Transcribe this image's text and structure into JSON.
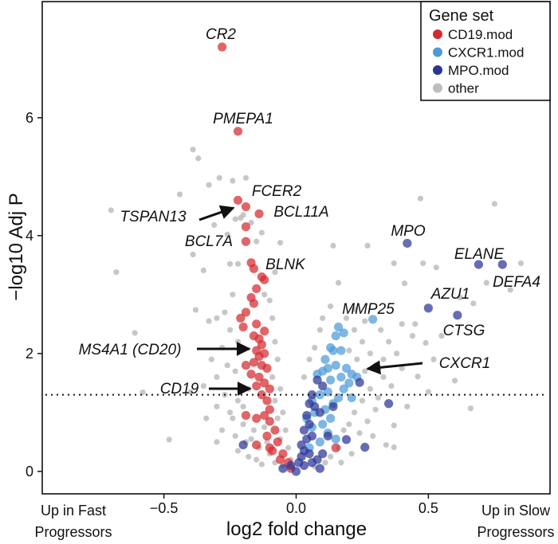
{
  "chart_data": {
    "type": "scatter",
    "title": "",
    "xlabel": "log2 fold change",
    "ylabel": "−log10 Adj P",
    "xlim": [
      -0.96,
      0.96
    ],
    "ylim": [
      -0.38,
      7.97
    ],
    "x_ticks": [
      {
        "value": -0.5,
        "label": "−0.5"
      },
      {
        "value": 0,
        "label": "0.0"
      },
      {
        "value": 0.5,
        "label": "0.5"
      }
    ],
    "y_ticks": [
      {
        "value": 0,
        "label": "0"
      },
      {
        "value": 2,
        "label": "2"
      },
      {
        "value": 4,
        "label": "4"
      },
      {
        "value": 6,
        "label": "6"
      }
    ],
    "threshold_line": {
      "y": 1.3,
      "style": "dotted"
    },
    "x_annotations": {
      "left": [
        "Up in Fast",
        "Progressors"
      ],
      "right": [
        "Up in Slow",
        "Progressors"
      ]
    },
    "legend": {
      "title": "Gene set",
      "placement": "top-right",
      "entries": [
        {
          "name": "CD19.mod",
          "color": "#d42a2f"
        },
        {
          "name": "CXCR1.mod",
          "color": "#4d9ad8"
        },
        {
          "name": "MPO.mod",
          "color": "#2c3595"
        },
        {
          "name": "other",
          "color": "#bdbdbd"
        }
      ]
    },
    "series": [
      {
        "name": "other",
        "color": "#bdbdbd",
        "points": [
          [
            -0.39,
            5.46
          ],
          [
            -0.37,
            5.31
          ],
          [
            -0.29,
            4.98
          ],
          [
            -0.24,
            4.93
          ],
          [
            -0.19,
            4.98
          ],
          [
            -0.33,
            4.86
          ],
          [
            -0.44,
            4.7
          ],
          [
            -0.7,
            4.43
          ],
          [
            -0.31,
            4.18
          ],
          [
            -0.13,
            4.05
          ],
          [
            -0.15,
            3.9
          ],
          [
            -0.06,
            3.88
          ],
          [
            -0.39,
            3.68
          ],
          [
            0.14,
            3.83
          ],
          [
            0.27,
            3.83
          ],
          [
            0.47,
            4.63
          ],
          [
            0.75,
            4.54
          ],
          [
            0.37,
            3.53
          ],
          [
            0.48,
            3.53
          ],
          [
            0.53,
            3.46
          ],
          [
            0.85,
            3.53
          ],
          [
            -0.68,
            3.38
          ],
          [
            -0.35,
            3.41
          ],
          [
            -0.25,
            3.52
          ],
          [
            -0.22,
            3.52
          ],
          [
            -0.08,
            3.38
          ],
          [
            -0.48,
            0.54
          ],
          [
            -0.61,
            2.35
          ],
          [
            -0.38,
            2.74
          ],
          [
            -0.58,
            1.34
          ],
          [
            0.66,
            1.07
          ],
          [
            0.6,
            1.54
          ],
          [
            0.67,
            2.85
          ],
          [
            0.37,
            0.41
          ],
          [
            0.37,
            0.78
          ],
          [
            0.42,
            1.1
          ],
          [
            0.46,
            1.61
          ],
          [
            0.5,
            1.35
          ],
          [
            0.16,
            3.2
          ],
          [
            0.41,
            3.19
          ],
          [
            0.62,
            2.95
          ],
          [
            0.72,
            3.2
          ],
          [
            0.81,
            3.08
          ],
          [
            0.49,
            2.18
          ],
          [
            0.45,
            2.5
          ],
          [
            -0.21,
            4.3
          ],
          [
            -0.2,
            4.35
          ],
          [
            -0.23,
            4.28
          ],
          [
            -0.17,
            4.22
          ],
          [
            -0.26,
            4.02
          ],
          [
            -0.12,
            3.0
          ],
          [
            -0.1,
            2.9
          ],
          [
            -0.24,
            3.0
          ],
          [
            -0.27,
            2.7
          ],
          [
            -0.3,
            2.6
          ],
          [
            -0.33,
            2.55
          ],
          [
            -0.25,
            2.4
          ],
          [
            -0.22,
            2.2
          ],
          [
            -0.28,
            2.1
          ],
          [
            -0.32,
            1.9
          ],
          [
            -0.26,
            1.8
          ],
          [
            -0.23,
            1.7
          ],
          [
            -0.3,
            1.6
          ],
          [
            -0.35,
            1.45
          ],
          [
            -0.4,
            1.35
          ],
          [
            -0.27,
            1.3
          ],
          [
            -0.22,
            1.2
          ],
          [
            -0.3,
            1.1
          ],
          [
            -0.25,
            1.0
          ],
          [
            -0.34,
            0.9
          ],
          [
            -0.2,
            0.8
          ],
          [
            -0.28,
            0.7
          ],
          [
            -0.23,
            0.6
          ],
          [
            -0.17,
            0.55
          ],
          [
            -0.3,
            0.5
          ],
          [
            -0.14,
            0.4
          ],
          [
            -0.22,
            0.35
          ],
          [
            -0.1,
            0.3
          ],
          [
            -0.18,
            0.25
          ],
          [
            -0.08,
            0.15
          ],
          [
            -0.13,
            0.12
          ],
          [
            -0.05,
            0.1
          ],
          [
            -0.09,
            2.6
          ],
          [
            -0.08,
            2.2
          ],
          [
            -0.07,
            1.9
          ],
          [
            -0.09,
            1.6
          ],
          [
            -0.06,
            1.4
          ],
          [
            -0.08,
            1.2
          ],
          [
            -0.05,
            1.0
          ],
          [
            -0.07,
            0.9
          ],
          [
            -0.04,
            0.7
          ],
          [
            -0.06,
            0.55
          ],
          [
            -0.03,
            0.4
          ],
          [
            -0.18,
            1.4
          ],
          [
            -0.2,
            1.1
          ],
          [
            -0.16,
            0.7
          ],
          [
            -0.12,
            0.75
          ],
          [
            -0.24,
            0.9
          ],
          [
            -0.19,
            0.5
          ],
          [
            -0.15,
            0.2
          ],
          [
            -0.11,
            0.5
          ],
          [
            -0.02,
            0.2
          ],
          [
            0.03,
            1.6
          ],
          [
            0.05,
            1.9
          ],
          [
            0.07,
            2.1
          ],
          [
            0.09,
            2.4
          ],
          [
            0.1,
            2.6
          ],
          [
            0.13,
            2.8
          ],
          [
            0.19,
            2.6
          ],
          [
            0.22,
            2.4
          ],
          [
            0.25,
            2.2
          ],
          [
            0.28,
            2.0
          ],
          [
            0.3,
            1.8
          ],
          [
            0.26,
            1.7
          ],
          [
            0.33,
            1.6
          ],
          [
            0.28,
            1.4
          ],
          [
            0.25,
            1.2
          ],
          [
            0.3,
            1.05
          ],
          [
            0.22,
            1.0
          ],
          [
            0.27,
            0.85
          ],
          [
            0.2,
            0.8
          ],
          [
            0.24,
            0.65
          ],
          [
            0.18,
            0.7
          ],
          [
            0.16,
            0.4
          ],
          [
            0.21,
            0.3
          ],
          [
            0.13,
            0.25
          ],
          [
            0.17,
            0.15
          ],
          [
            0.11,
            0.15
          ],
          [
            0.07,
            0.08
          ],
          [
            0.32,
            2.4
          ],
          [
            0.35,
            2.2
          ],
          [
            0.38,
            2.0
          ],
          [
            0.33,
            1.9
          ],
          [
            0.4,
            1.75
          ],
          [
            0.36,
            1.45
          ],
          [
            0.31,
            1.25
          ],
          [
            0.29,
            0.6
          ],
          [
            0.34,
            0.45
          ],
          [
            0.23,
            1.9
          ],
          [
            0.2,
            2.05
          ],
          [
            0.26,
            2.55
          ],
          [
            0.22,
            2.75
          ],
          [
            0.44,
            2.3
          ],
          [
            0.4,
            2.5
          ],
          [
            0.55,
            2.3
          ],
          [
            0.52,
            1.9
          ]
        ]
      },
      {
        "name": "CD19.mod",
        "color": "#d42a2f",
        "points": [
          [
            -0.28,
            7.2
          ],
          [
            -0.22,
            5.77
          ],
          [
            -0.22,
            4.6
          ],
          [
            -0.19,
            4.49
          ],
          [
            -0.14,
            4.37
          ],
          [
            -0.19,
            4.15
          ],
          [
            -0.19,
            3.9
          ],
          [
            -0.17,
            3.54
          ],
          [
            -0.16,
            3.44
          ],
          [
            -0.13,
            3.3
          ],
          [
            -0.12,
            3.25
          ],
          [
            -0.15,
            3.1
          ],
          [
            -0.17,
            2.95
          ],
          [
            -0.16,
            2.85
          ],
          [
            -0.19,
            2.7
          ],
          [
            -0.21,
            2.6
          ],
          [
            -0.2,
            2.45
          ],
          [
            -0.15,
            2.5
          ],
          [
            -0.12,
            2.38
          ],
          [
            -0.16,
            2.3
          ],
          [
            -0.14,
            2.25
          ],
          [
            -0.13,
            2.15
          ],
          [
            -0.15,
            2.05
          ],
          [
            -0.12,
            2.0
          ],
          [
            -0.14,
            1.95
          ],
          [
            -0.16,
            1.85
          ],
          [
            -0.13,
            1.8
          ],
          [
            -0.11,
            1.75
          ],
          [
            -0.19,
            1.8
          ],
          [
            -0.17,
            1.65
          ],
          [
            -0.14,
            1.6
          ],
          [
            -0.12,
            1.5
          ],
          [
            -0.15,
            1.45
          ],
          [
            -0.1,
            1.4
          ],
          [
            -0.13,
            1.3
          ],
          [
            -0.11,
            1.2
          ],
          [
            -0.1,
            1.05
          ],
          [
            -0.12,
            0.95
          ],
          [
            -0.19,
            0.95
          ],
          [
            -0.15,
            0.9
          ],
          [
            -0.1,
            0.85
          ],
          [
            -0.08,
            0.7
          ],
          [
            -0.11,
            0.6
          ],
          [
            -0.07,
            0.5
          ],
          [
            -0.15,
            0.45
          ],
          [
            -0.1,
            0.4
          ],
          [
            -0.09,
            0.35
          ],
          [
            -0.05,
            0.3
          ],
          [
            -0.06,
            0.2
          ],
          [
            -0.03,
            0.15
          ],
          [
            -0.02,
            0.05
          ],
          [
            0.15,
            0.4
          ]
        ]
      },
      {
        "name": "CXCR1.mod",
        "color": "#4d9ad8",
        "points": [
          [
            0.29,
            2.58
          ],
          [
            0.16,
            2.45
          ],
          [
            0.18,
            2.35
          ],
          [
            0.15,
            2.3
          ],
          [
            0.13,
            2.1
          ],
          [
            0.14,
            2.05
          ],
          [
            0.11,
            1.9
          ],
          [
            0.12,
            1.75
          ],
          [
            0.1,
            1.7
          ],
          [
            0.08,
            1.65
          ],
          [
            0.15,
            1.8
          ],
          [
            0.19,
            1.75
          ],
          [
            0.21,
            1.65
          ],
          [
            0.23,
            1.6
          ],
          [
            0.17,
            1.6
          ],
          [
            0.13,
            1.55
          ],
          [
            0.2,
            1.5
          ],
          [
            0.18,
            1.4
          ],
          [
            0.12,
            1.35
          ],
          [
            0.09,
            1.3
          ],
          [
            0.16,
            1.25
          ],
          [
            0.21,
            1.25
          ],
          [
            0.14,
            1.15
          ],
          [
            0.11,
            1.05
          ],
          [
            0.07,
            1.0
          ],
          [
            0.13,
            0.9
          ],
          [
            0.1,
            0.8
          ],
          [
            0.06,
            0.75
          ],
          [
            0.12,
            0.65
          ],
          [
            0.15,
            0.55
          ],
          [
            0.09,
            0.5
          ],
          [
            0.05,
            0.4
          ],
          [
            0.17,
            2.05
          ],
          [
            0.06,
            1.2
          ],
          [
            0.04,
            0.9
          ]
        ]
      },
      {
        "name": "MPO.mod",
        "color": "#2c3595",
        "points": [
          [
            0.42,
            3.87
          ],
          [
            0.69,
            3.51
          ],
          [
            0.78,
            3.51
          ],
          [
            0.5,
            2.77
          ],
          [
            0.61,
            2.65
          ],
          [
            0.08,
            1.55
          ],
          [
            0.1,
            1.45
          ],
          [
            0.06,
            1.3
          ],
          [
            0.05,
            1.15
          ],
          [
            0.07,
            1.1
          ],
          [
            0.09,
            1.0
          ],
          [
            0.04,
            0.95
          ],
          [
            0.05,
            0.8
          ],
          [
            0.03,
            0.7
          ],
          [
            0.06,
            0.6
          ],
          [
            0.04,
            0.55
          ],
          [
            0.02,
            0.45
          ],
          [
            0.03,
            0.35
          ],
          [
            0.05,
            0.3
          ],
          [
            0.02,
            0.25
          ],
          [
            0.08,
            0.2
          ],
          [
            0.01,
            0.15
          ],
          [
            0.03,
            0.1
          ],
          [
            0,
            0
          ],
          [
            -0.02,
            0.1
          ],
          [
            -0.05,
            0.05
          ],
          [
            0.09,
            0.05
          ],
          [
            0.14,
            1.1
          ],
          [
            0.12,
            0.6
          ],
          [
            0.24,
            1.51
          ],
          [
            0.35,
            1.15
          ],
          [
            -0.2,
            0.45
          ],
          [
            0.26,
            0.41
          ],
          [
            0.19,
            0.54
          ],
          [
            0.1,
            0.3
          ],
          [
            0.06,
            0.15
          ]
        ]
      }
    ],
    "annotations": [
      {
        "id": "cr2",
        "text": "CR2"
      },
      {
        "id": "pmepa1",
        "text": "PMEPA1"
      },
      {
        "id": "fcer2",
        "text": "FCER2"
      },
      {
        "id": "tspan13",
        "text": "TSPAN13"
      },
      {
        "id": "bcl11a",
        "text": "BCL11A"
      },
      {
        "id": "bcl7a",
        "text": "BCL7A"
      },
      {
        "id": "blnk",
        "text": "BLNK"
      },
      {
        "id": "mpo",
        "text": "MPO"
      },
      {
        "id": "elane",
        "text": "ELANE"
      },
      {
        "id": "defa4",
        "text": "DEFA4"
      },
      {
        "id": "azu1",
        "text": "AZU1"
      },
      {
        "id": "mmp25",
        "text": "MMP25"
      },
      {
        "id": "ctsg",
        "text": "CTSG"
      },
      {
        "id": "ms4a1",
        "text": "MS4A1 (CD20)"
      },
      {
        "id": "cd19",
        "text": "CD19"
      },
      {
        "id": "cxcr1",
        "text": "CXCR1"
      }
    ]
  }
}
